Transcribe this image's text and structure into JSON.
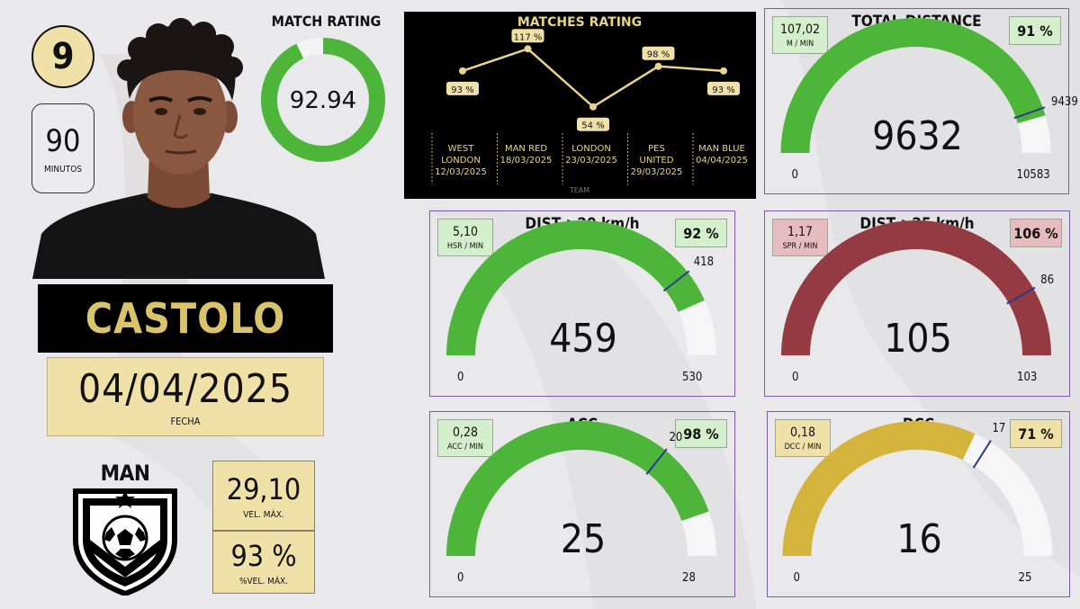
{
  "player": {
    "number": "9",
    "minutes": "90",
    "minutes_label": "MINUTOS",
    "name": "CASTOLO",
    "date": "04/04/2025",
    "date_label": "FECHA"
  },
  "team": {
    "name": "MAN BLUE",
    "max_speed": "29,10",
    "max_speed_label": "VEL. MÁX.",
    "pct_max_speed": "93 %",
    "pct_max_speed_label": "%VEL. MÁX."
  },
  "match_rating": {
    "title": "MATCH RATING",
    "value": "92.94",
    "fraction": 0.9294,
    "color": "#4db53a"
  },
  "chart_data": [
    {
      "type": "line",
      "title": "MATCHES RATING",
      "xlabel": "TEAM",
      "categories": [
        {
          "team": [
            "WEST",
            "LONDON"
          ],
          "date": "12/03/2025"
        },
        {
          "team": [
            "MAN RED"
          ],
          "date": "18/03/2025"
        },
        {
          "team": [
            "LONDON"
          ],
          "date": "23/03/2025"
        },
        {
          "team": [
            "PES",
            "UNITED"
          ],
          "date": "29/03/2025"
        },
        {
          "team": [
            "MAN BLUE"
          ],
          "date": "04/04/2025"
        }
      ],
      "values": [
        93,
        117,
        54,
        98,
        93
      ],
      "labels": [
        "93 %",
        "117 %",
        "54 %",
        "98 %",
        "93 %"
      ],
      "ylim": [
        40,
        130
      ],
      "line_color": "#e8d48a",
      "label_bg": "#efe1a7"
    },
    {
      "type": "gauge",
      "title": "TOTAL DISTANCE",
      "value": 9632,
      "value_label": "9632",
      "min": 0,
      "min_label": "0",
      "max": 10583,
      "max_label": "10583",
      "target": 9439,
      "target_label": "9439",
      "rate": "107,02",
      "rate_unit": "M / MIN",
      "percent": "91 %",
      "fill_color": "#4db53a",
      "track_color": "#f6f6f6",
      "needle_color": "#2a3a8c",
      "badge": "green"
    },
    {
      "type": "gauge",
      "title": "DIST >20 km/h",
      "value": 459,
      "value_label": "459",
      "min": 0,
      "min_label": "0",
      "max": 530,
      "max_label": "530",
      "target": 418,
      "target_label": "418",
      "rate": "5,10",
      "rate_unit": "HSR / MIN",
      "percent": "92 %",
      "fill_color": "#4db53a",
      "track_color": "#f6f6f6",
      "needle_color": "#2a3a8c",
      "badge": "green"
    },
    {
      "type": "gauge",
      "title": "DIST >25 km/h",
      "value": 105,
      "value_label": "105",
      "min": 0,
      "min_label": "0",
      "max": 103,
      "max_label": "103",
      "target": 86,
      "target_label": "86",
      "rate": "1,17",
      "rate_unit": "SPR / MIN",
      "percent": "106 %",
      "fill_color": "#933a42",
      "track_color": "#f6f6f6",
      "needle_color": "#2a3a8c",
      "badge": "red"
    },
    {
      "type": "gauge",
      "title": "ACC",
      "value": 25,
      "value_label": "25",
      "min": 0,
      "min_label": "0",
      "max": 28,
      "max_label": "28",
      "target": 20,
      "target_label": "20",
      "rate": "0,28",
      "rate_unit": "ACC / MIN",
      "percent": "98 %",
      "fill_color": "#4db53a",
      "track_color": "#f6f6f6",
      "needle_color": "#2a3a8c",
      "badge": "green"
    },
    {
      "type": "gauge",
      "title": "DCC",
      "value": 16,
      "value_label": "16",
      "min": 0,
      "min_label": "0",
      "max": 25,
      "max_label": "25",
      "target": 17,
      "target_label": "17",
      "rate": "0,18",
      "rate_unit": "DCC / MIN",
      "percent": "71 %",
      "fill_color": "#d4b43c",
      "track_color": "#f6f6f6",
      "needle_color": "#2a3a8c",
      "badge": "yellow"
    }
  ]
}
